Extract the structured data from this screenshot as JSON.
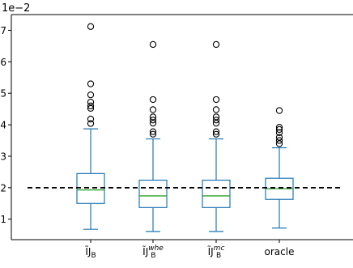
{
  "chart_data": {
    "type": "boxplot",
    "title": "",
    "xlabel": "",
    "ylabel": "",
    "y_multiplier_label": "1e−2",
    "ylim": [
      0.0035,
      0.0075
    ],
    "yticks": [
      {
        "value": 0.01,
        "label": "1"
      },
      {
        "value": 0.02,
        "label": "2"
      },
      {
        "value": 0.03,
        "label": "3"
      },
      {
        "value": 0.04,
        "label": "4"
      },
      {
        "value": 0.05,
        "label": "5"
      },
      {
        "value": 0.06,
        "label": "6"
      },
      {
        "value": 0.07,
        "label": "7"
      }
    ],
    "reference_line": {
      "value": 0.02,
      "style": "dashed",
      "color": "#000000"
    },
    "box_color": "#1f77b4",
    "median_color": "#2ca02c",
    "grid": false,
    "categories": [
      {
        "label_main": "ĨJ",
        "label_sub": "B",
        "label_sup": "",
        "whisker_low": 0.0068,
        "q1": 0.015,
        "median": 0.0193,
        "q3": 0.0245,
        "whisker_high": 0.0387,
        "outliers": [
          0.0404,
          0.0418,
          0.0452,
          0.046,
          0.0472,
          0.0495,
          0.053,
          0.0712
        ]
      },
      {
        "label_main": "ĨJ",
        "label_sub": "B",
        "label_sup": "whe",
        "whisker_low": 0.0061,
        "q1": 0.0137,
        "median": 0.0174,
        "q3": 0.0224,
        "whisker_high": 0.0355,
        "outliers": [
          0.037,
          0.0378,
          0.0405,
          0.0415,
          0.0425,
          0.0448,
          0.048,
          0.0655
        ]
      },
      {
        "label_main": "ĨJ",
        "label_sub": "B",
        "label_sup": "mc",
        "whisker_low": 0.0061,
        "q1": 0.0137,
        "median": 0.0174,
        "q3": 0.0224,
        "whisker_high": 0.0355,
        "outliers": [
          0.037,
          0.0378,
          0.0405,
          0.0415,
          0.0425,
          0.0448,
          0.048,
          0.0655
        ]
      },
      {
        "label_main": "oracle",
        "label_sub": "",
        "label_sup": "",
        "whisker_low": 0.0072,
        "q1": 0.0163,
        "median": 0.0197,
        "q3": 0.023,
        "whisker_high": 0.0327,
        "outliers": [
          0.034,
          0.035,
          0.036,
          0.0375,
          0.0385,
          0.0392,
          0.0445
        ]
      }
    ]
  }
}
